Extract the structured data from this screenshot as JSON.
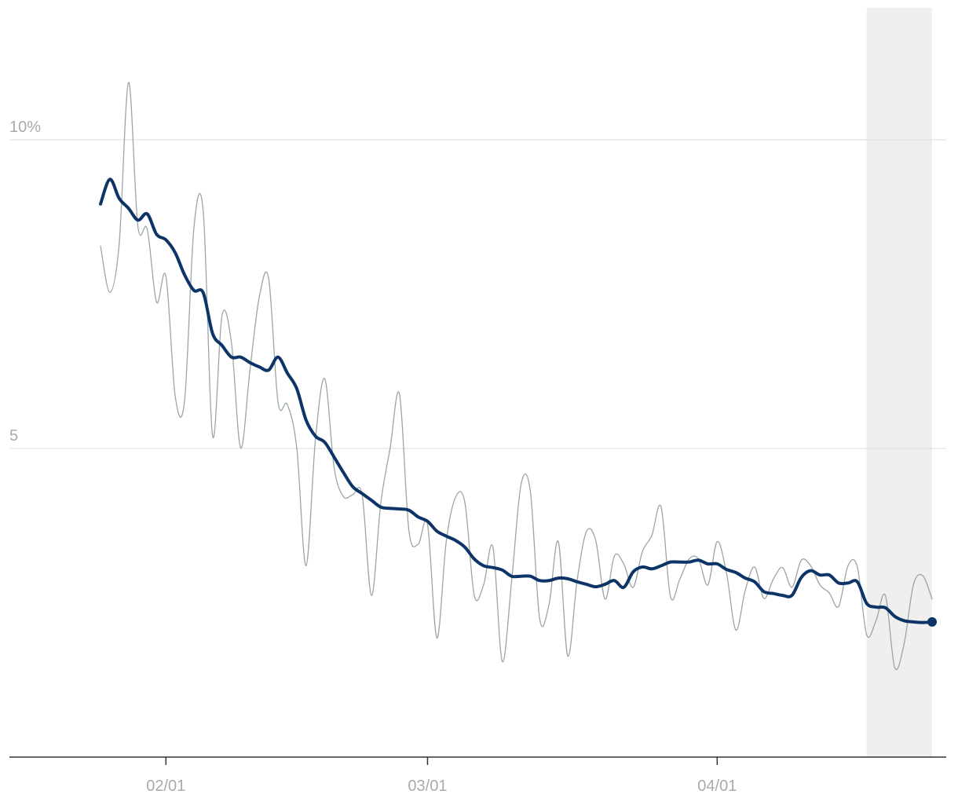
{
  "chart_data": {
    "type": "line",
    "categories": [
      null,
      null,
      null,
      null,
      null,
      null,
      null,
      "02/01",
      null,
      null,
      null,
      null,
      null,
      null,
      null,
      null,
      null,
      null,
      null,
      null,
      null,
      null,
      null,
      null,
      null,
      null,
      null,
      null,
      null,
      null,
      null,
      null,
      null,
      null,
      null,
      "03/01",
      null,
      null,
      null,
      null,
      null,
      null,
      null,
      null,
      null,
      null,
      null,
      null,
      null,
      null,
      null,
      null,
      null,
      null,
      null,
      null,
      null,
      null,
      null,
      null,
      null,
      null,
      null,
      null,
      null,
      null,
      "04/01",
      null,
      null,
      null,
      null,
      null,
      null,
      null,
      null,
      null,
      null,
      null,
      null,
      null,
      null,
      null,
      null,
      null,
      null,
      null,
      null,
      null,
      null,
      null
    ],
    "series": [
      {
        "color": "#9aa5a8",
        "width": 1.3,
        "values": [
          8.28,
          7.53,
          8.32,
          10.93,
          8.6,
          8.55,
          7.37,
          7.79,
          5.84,
          5.78,
          8.58,
          8.83,
          5.2,
          7.15,
          6.73,
          5.01,
          6.28,
          7.46,
          7.75,
          5.75,
          5.71,
          5.01,
          3.1,
          5.14,
          6.13,
          4.69,
          4.22,
          4.25,
          4.25,
          2.62,
          4.12,
          5.01,
          5.88,
          3.68,
          3.45,
          3.77,
          1.93,
          3.49,
          4.21,
          4.12,
          2.62,
          2.79,
          3.4,
          1.55,
          2.85,
          4.41,
          4.31,
          2.24,
          2.47,
          3.49,
          1.64,
          2.85,
          3.65,
          3.51,
          2.56,
          3.26,
          3.13,
          2.75,
          3.33,
          3.59,
          4.05,
          2.6,
          2.88,
          3.21,
          3.21,
          2.79,
          3.49,
          2.98,
          2.06,
          2.7,
          3.08,
          2.57,
          2.88,
          3.07,
          2.75,
          3.19,
          3.1,
          2.79,
          2.66,
          2.44,
          3.1,
          3.08,
          1.98,
          2.21,
          2.62,
          1.45,
          1.83,
          2.79,
          2.94,
          2.56
        ]
      },
      {
        "color": "#0c3466",
        "width": 4,
        "end_dot": true,
        "values": [
          8.96,
          9.36,
          9.05,
          8.89,
          8.7,
          8.8,
          8.47,
          8.38,
          8.17,
          7.81,
          7.56,
          7.52,
          6.86,
          6.67,
          6.48,
          6.48,
          6.39,
          6.32,
          6.27,
          6.48,
          6.22,
          5.97,
          5.46,
          5.2,
          5.1,
          4.86,
          4.61,
          4.38,
          4.27,
          4.16,
          4.05,
          4.03,
          4.02,
          4.0,
          3.89,
          3.82,
          3.66,
          3.58,
          3.51,
          3.4,
          3.21,
          3.1,
          3.07,
          3.03,
          2.93,
          2.93,
          2.93,
          2.86,
          2.86,
          2.9,
          2.89,
          2.84,
          2.8,
          2.76,
          2.8,
          2.86,
          2.75,
          3.0,
          3.08,
          3.05,
          3.1,
          3.16,
          3.16,
          3.16,
          3.19,
          3.13,
          3.13,
          3.04,
          2.99,
          2.9,
          2.84,
          2.68,
          2.65,
          2.62,
          2.62,
          2.91,
          3.02,
          2.95,
          2.95,
          2.82,
          2.82,
          2.84,
          2.49,
          2.43,
          2.42,
          2.28,
          2.21,
          2.19,
          2.18,
          2.19
        ]
      }
    ],
    "ylim": [
      0,
      12.1
    ],
    "yticks": [
      5,
      {
        "value": 10,
        "label": "10%"
      }
    ],
    "grid": true,
    "shade_start": 82
  }
}
